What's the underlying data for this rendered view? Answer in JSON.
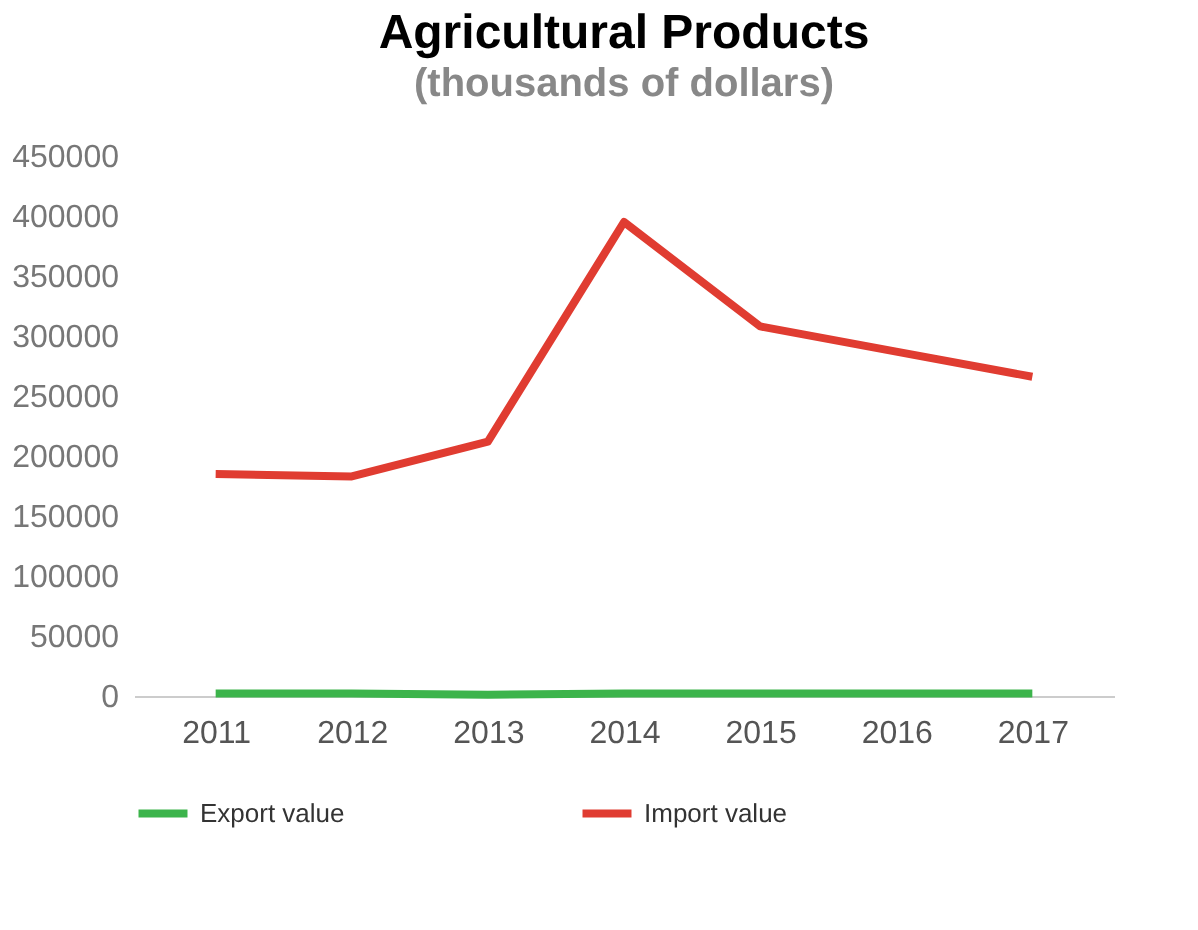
{
  "chart_data": {
    "type": "line",
    "title": "Agricultural Products",
    "subtitle": "(thousands of dollars)",
    "categories": [
      "2011",
      "2012",
      "2013",
      "2014",
      "2015",
      "2016",
      "2017"
    ],
    "series": [
      {
        "name": "Export value",
        "color": "#3cb44b",
        "values": [
          2000,
          2000,
          1000,
          2000,
          2000,
          2000,
          2000
        ]
      },
      {
        "name": "Import value",
        "color": "#e03c31",
        "values": [
          185000,
          183000,
          212000,
          395000,
          308000,
          287000,
          266000
        ]
      }
    ],
    "ylim": [
      0,
      450000
    ],
    "yticks": [
      0,
      50000,
      100000,
      150000,
      200000,
      250000,
      300000,
      350000,
      400000,
      450000
    ],
    "grid": false,
    "legend": "bottom",
    "marker": "none",
    "line_style": "solid"
  }
}
